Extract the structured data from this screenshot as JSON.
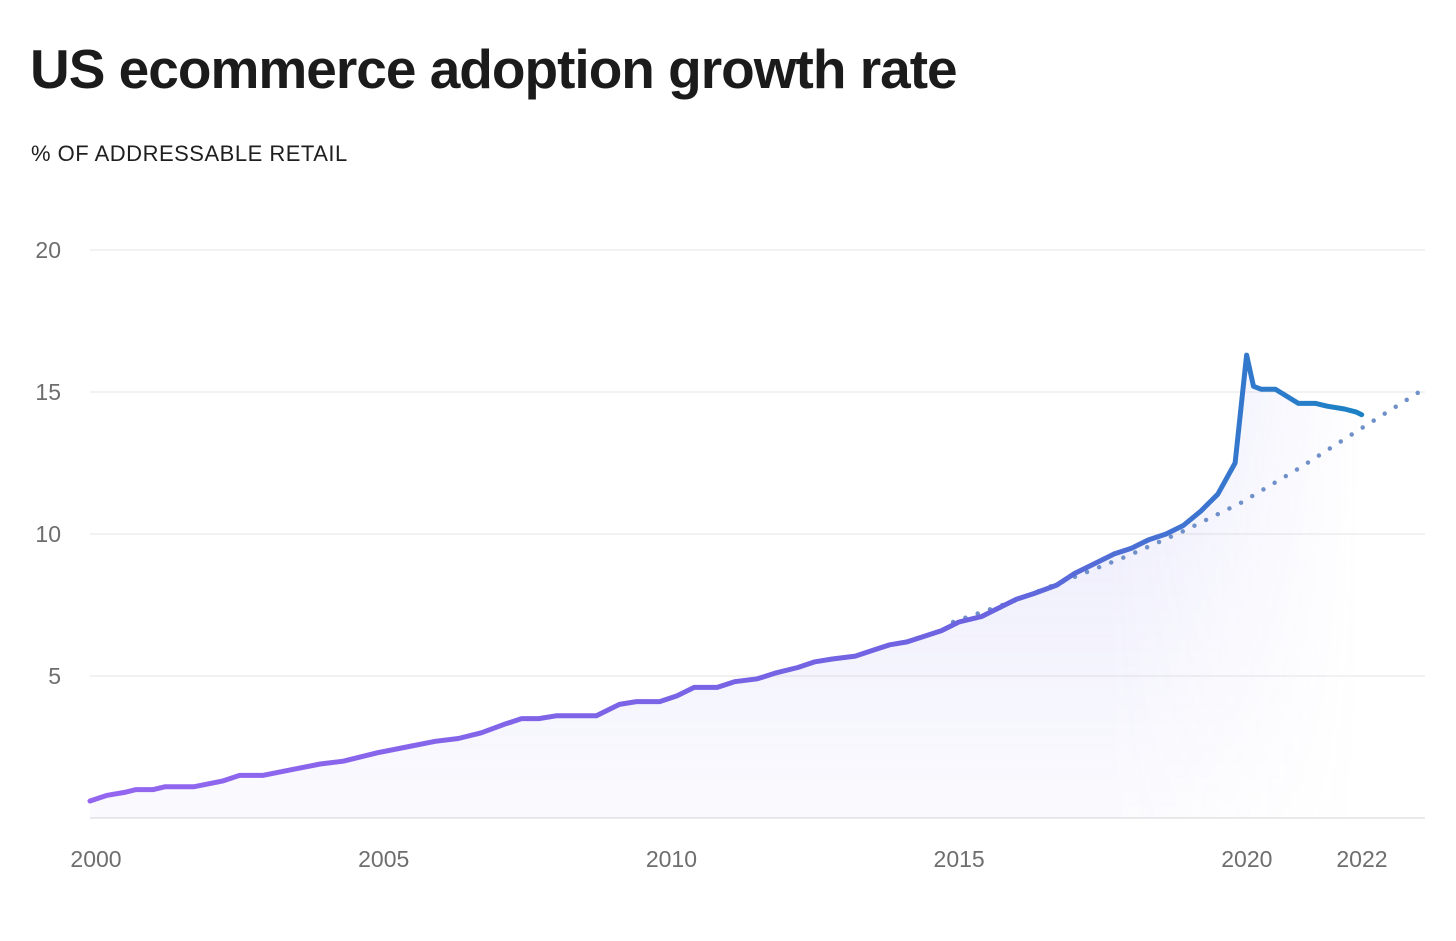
{
  "chart_data": {
    "type": "line",
    "title": "US ecommerce adoption growth rate",
    "ylabel": "% OF ADDRESSABLE RETAIL",
    "xlabel": "",
    "xlim": [
      2000,
      2023.2
    ],
    "ylim": [
      0,
      20
    ],
    "grid": true,
    "legend": "none",
    "x_ticks": [
      {
        "value": 2000,
        "label": "2000"
      },
      {
        "value": 2005,
        "label": "2005"
      },
      {
        "value": 2010,
        "label": "2010"
      },
      {
        "value": 2015,
        "label": "2015"
      },
      {
        "value": 2020,
        "label": "2020"
      },
      {
        "value": 2022,
        "label": "2022"
      }
    ],
    "y_ticks": [
      {
        "value": 5,
        "label": "5"
      },
      {
        "value": 10,
        "label": "10"
      },
      {
        "value": 15,
        "label": "15"
      },
      {
        "value": 20,
        "label": "20"
      }
    ],
    "series": [
      {
        "style": "solid",
        "color_start": "#9466f0",
        "color_end": "#1a82c4",
        "x": [
          2000.0,
          2000.3,
          2000.6,
          2000.8,
          2001.1,
          2001.3,
          2001.8,
          2002.3,
          2002.6,
          2003.0,
          2003.5,
          2004.0,
          2004.4,
          2005.0,
          2005.5,
          2006.0,
          2006.4,
          2006.8,
          2007.2,
          2007.5,
          2007.8,
          2008.1,
          2008.5,
          2008.8,
          2009.2,
          2009.5,
          2009.9,
          2010.2,
          2010.5,
          2010.9,
          2011.2,
          2011.6,
          2011.9,
          2012.3,
          2012.6,
          2012.9,
          2013.3,
          2013.6,
          2013.9,
          2014.2,
          2014.5,
          2014.8,
          2015.1,
          2015.5,
          2015.8,
          2016.1,
          2016.4,
          2016.8,
          2017.1,
          2017.4,
          2017.8,
          2018.1,
          2018.4,
          2018.7,
          2019.0,
          2019.3,
          2019.6,
          2019.9,
          2020.1,
          2020.22,
          2020.35,
          2020.45,
          2020.6,
          2021.0,
          2021.3,
          2021.5,
          2021.8,
          2022.0,
          2022.1
        ],
        "y": [
          0.6,
          0.8,
          0.9,
          1.0,
          1.0,
          1.1,
          1.1,
          1.3,
          1.5,
          1.5,
          1.7,
          1.9,
          2.0,
          2.3,
          2.5,
          2.7,
          2.8,
          3.0,
          3.3,
          3.5,
          3.5,
          3.6,
          3.6,
          3.6,
          4.0,
          4.1,
          4.1,
          4.3,
          4.6,
          4.6,
          4.8,
          4.9,
          5.1,
          5.3,
          5.5,
          5.6,
          5.7,
          5.9,
          6.1,
          6.2,
          6.4,
          6.6,
          6.9,
          7.1,
          7.4,
          7.7,
          7.9,
          8.2,
          8.6,
          8.9,
          9.3,
          9.5,
          9.8,
          10.0,
          10.3,
          10.8,
          11.4,
          12.5,
          16.3,
          15.2,
          15.1,
          15.1,
          15.1,
          14.6,
          14.6,
          14.5,
          14.4,
          14.3,
          14.2
        ]
      },
      {
        "style": "dotted",
        "color": "#6f90c8",
        "x": [
          2015.0,
          2016.0,
          2017.0,
          2018.0,
          2019.0,
          2020.0,
          2021.0,
          2022.0,
          2023.1
        ],
        "y": [
          6.9,
          7.6,
          8.4,
          9.2,
          10.1,
          11.1,
          12.3,
          13.6,
          15.0
        ]
      }
    ]
  }
}
